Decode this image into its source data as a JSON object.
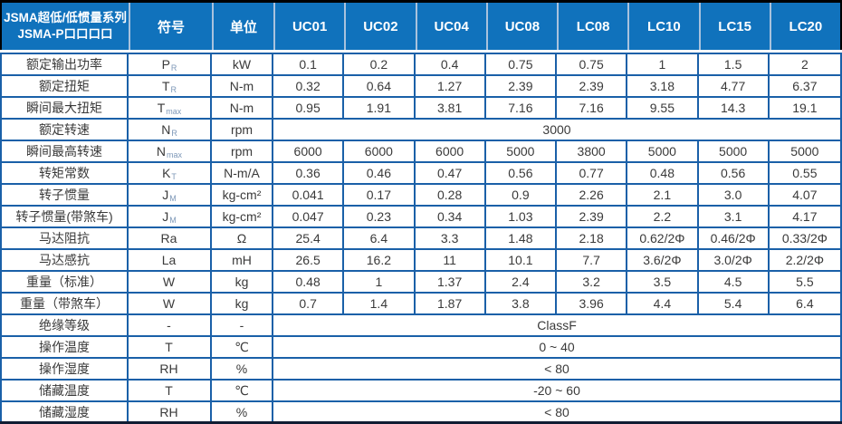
{
  "colors": {
    "header_bg": "#1072BC",
    "header_text": "#FFFFFF",
    "grid_border": "#1A60A8",
    "header_divider": "#A9C2DD",
    "outer_top_border": "#000000",
    "bottom_bar": "#101C33",
    "body_text": "#3A3A3A",
    "subscript": "#7E98B8"
  },
  "header": {
    "title_line1": "JSMA超低/低惯量系列",
    "title_line2": "JSMA-P口口口口",
    "symbol_col": "符号",
    "unit_col": "单位",
    "models": [
      "UC01",
      "UC02",
      "UC04",
      "UC08",
      "LC08",
      "LC10",
      "LC15",
      "LC20"
    ]
  },
  "rows": [
    {
      "label": "额定输出功率",
      "sym": "P",
      "sub": "R",
      "unit": "kW",
      "values": [
        "0.1",
        "0.2",
        "0.4",
        "0.75",
        "0.75",
        "1",
        "1.5",
        "2"
      ]
    },
    {
      "label": "额定扭矩",
      "sym": "T",
      "sub": "R",
      "unit": "N-m",
      "values": [
        "0.32",
        "0.64",
        "1.27",
        "2.39",
        "2.39",
        "3.18",
        "4.77",
        "6.37"
      ]
    },
    {
      "label": "瞬间最大扭矩",
      "sym": "T",
      "sub": "max",
      "unit": "N-m",
      "values": [
        "0.95",
        "1.91",
        "3.81",
        "7.16",
        "7.16",
        "9.55",
        "14.3",
        "19.1"
      ]
    },
    {
      "label": "额定转速",
      "sym": "N",
      "sub": "R",
      "unit": "rpm",
      "merged": "3000"
    },
    {
      "label": "瞬间最高转速",
      "sym": "N",
      "sub": "max",
      "unit": "rpm",
      "values": [
        "6000",
        "6000",
        "6000",
        "5000",
        "3800",
        "5000",
        "5000",
        "5000"
      ]
    },
    {
      "label": "转矩常数",
      "sym": "K",
      "sub": "T",
      "unit": "N-m/A",
      "values": [
        "0.36",
        "0.46",
        "0.47",
        "0.56",
        "0.77",
        "0.48",
        "0.56",
        "0.55"
      ]
    },
    {
      "label": "转子惯量",
      "sym": "J",
      "sub": "M",
      "unit": "kg-cm²",
      "values": [
        "0.041",
        "0.17",
        "0.28",
        "0.9",
        "2.26",
        "2.1",
        "3.0",
        "4.07"
      ]
    },
    {
      "label": "转子惯量(带煞车)",
      "sym": "J",
      "sub": "M",
      "unit": "kg-cm²",
      "values": [
        "0.047",
        "0.23",
        "0.34",
        "1.03",
        "2.39",
        "2.2",
        "3.1",
        "4.17"
      ]
    },
    {
      "label": "马达阻抗",
      "sym": "Ra",
      "sub": "",
      "unit": "Ω",
      "values": [
        "25.4",
        "6.4",
        "3.3",
        "1.48",
        "2.18",
        "0.62/2Φ",
        "0.46/2Φ",
        "0.33/2Φ"
      ]
    },
    {
      "label": "马达感抗",
      "sym": "La",
      "sub": "",
      "unit": "mH",
      "values": [
        "26.5",
        "16.2",
        "11",
        "10.1",
        "7.7",
        "3.6/2Φ",
        "3.0/2Φ",
        "2.2/2Φ"
      ]
    },
    {
      "label": "重量（标准）",
      "sym": "W",
      "sub": "",
      "unit": "kg",
      "values": [
        "0.48",
        "1",
        "1.37",
        "2.4",
        "3.2",
        "3.5",
        "4.5",
        "5.5"
      ]
    },
    {
      "label": "重量（带煞车）",
      "sym": "W",
      "sub": "",
      "unit": "kg",
      "values": [
        "0.7",
        "1.4",
        "1.87",
        "3.8",
        "3.96",
        "4.4",
        "5.4",
        "6.4"
      ]
    },
    {
      "label": "绝缘等级",
      "sym": "-",
      "sub": "",
      "unit": "-",
      "merged": "ClassF"
    },
    {
      "label": "操作温度",
      "sym": "T",
      "sub": "",
      "unit": "℃",
      "merged": "0 ~ 40"
    },
    {
      "label": "操作湿度",
      "sym": "RH",
      "sub": "",
      "unit": "%",
      "merged": "< 80"
    },
    {
      "label": "储藏温度",
      "sym": "T",
      "sub": "",
      "unit": "℃",
      "merged": "-20 ~ 60"
    },
    {
      "label": "储藏湿度",
      "sym": "RH",
      "sub": "",
      "unit": "%",
      "merged": "< 80"
    }
  ]
}
